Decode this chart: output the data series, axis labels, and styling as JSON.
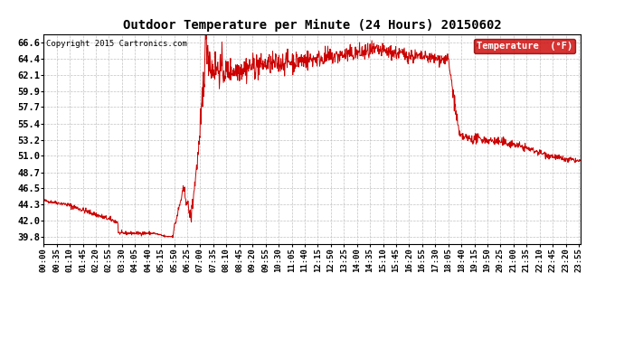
{
  "title": "Outdoor Temperature per Minute (24 Hours) 20150602",
  "copyright": "Copyright 2015 Cartronics.com",
  "legend_label": "Temperature  (°F)",
  "line_color": "#cc0000",
  "background_color": "#ffffff",
  "grid_color": "#bbbbbb",
  "yticks": [
    39.8,
    42.0,
    44.3,
    46.5,
    48.7,
    51.0,
    53.2,
    55.4,
    57.7,
    59.9,
    62.1,
    64.4,
    66.6
  ],
  "ylim": [
    38.8,
    67.8
  ],
  "xtick_interval_minutes": 35,
  "total_minutes": 1440,
  "legend_bg": "#cc0000",
  "legend_text_color": "#ffffff",
  "title_fontsize": 10,
  "ytick_fontsize": 7.5,
  "xtick_fontsize": 6.5,
  "copyright_fontsize": 6.5
}
